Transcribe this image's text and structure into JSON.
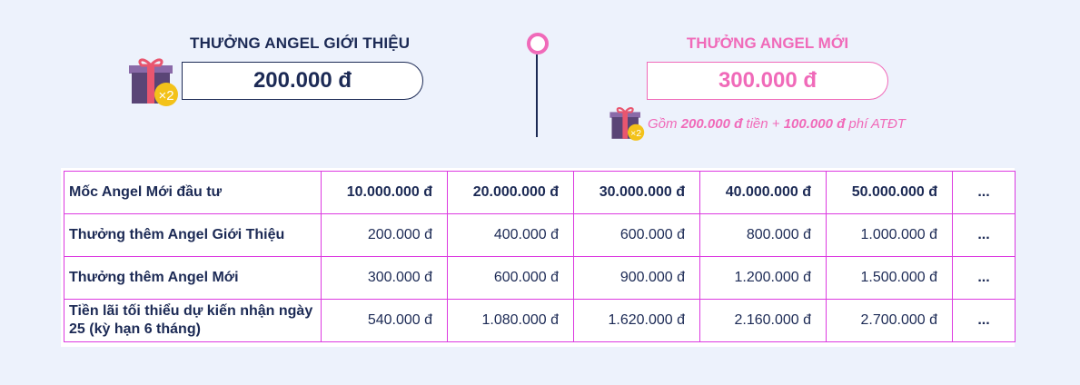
{
  "left": {
    "title": "THƯỞNG ANGEL GIỚI THIỆU",
    "amount": "200.000 đ",
    "badge": "×2"
  },
  "right": {
    "title": "THƯỞNG ANGEL MỚI",
    "amount": "300.000 đ",
    "badge": "×2",
    "note": {
      "prefix": "Gồm ",
      "amount1": "200.000 đ",
      "middle": "  tiền + ",
      "amount2": "100.000 đ",
      "suffix": " phí ATĐT"
    }
  },
  "table": {
    "rows": [
      {
        "label": "Mốc Angel Mới đầu tư",
        "values": [
          "10.000.000 đ",
          "20.000.000 đ",
          "30.000.000 đ",
          "40.000.000 đ",
          "50.000.000 đ"
        ],
        "more": "..."
      },
      {
        "label": "Thưởng thêm Angel Giới Thiệu",
        "values": [
          "200.000 đ",
          "400.000 đ",
          "600.000 đ",
          "800.000 đ",
          "1.000.000 đ"
        ],
        "more": "..."
      },
      {
        "label": "Thưởng thêm Angel Mới",
        "values": [
          "300.000 đ",
          "600.000 đ",
          "900.000 đ",
          "1.200.000 đ",
          "1.500.000 đ"
        ],
        "more": "..."
      },
      {
        "label": "Tiền lãi tối thiểu dự kiến nhận ngày 25 (kỳ hạn 6 tháng)",
        "values": [
          "540.000 đ",
          "1.080.000 đ",
          "1.620.000 đ",
          "2.160.000 đ",
          "2.700.000 đ"
        ],
        "more": "..."
      }
    ]
  },
  "colors": {
    "navy": "#1c2a55",
    "pink": "#f06ab9",
    "grid": "#dc3ae0",
    "gift_box": "#5a4576",
    "gift_ribbon": "#e9566f",
    "badge": "#f3c21a"
  }
}
